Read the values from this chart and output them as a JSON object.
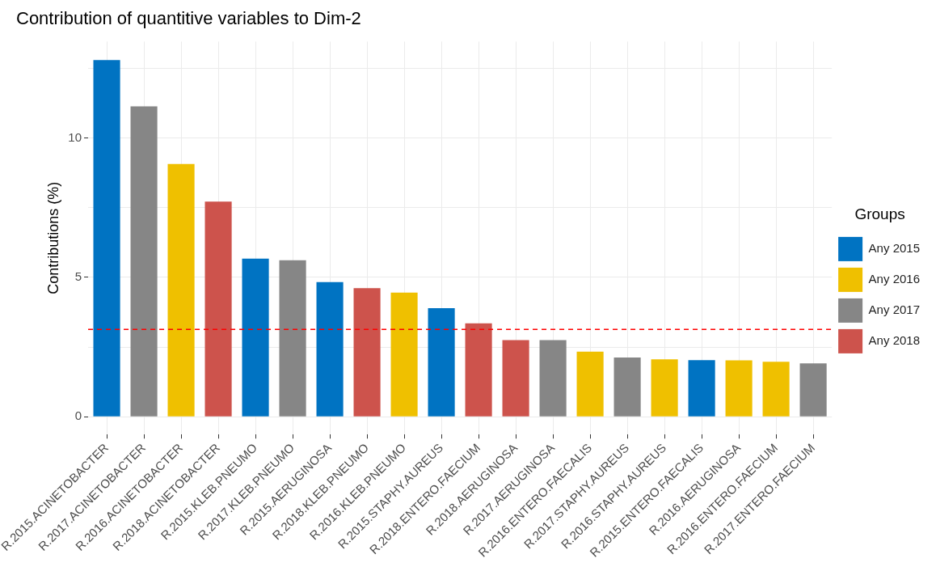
{
  "chart_data": {
    "type": "bar",
    "title": "Contribution of quantitive variables to Dim-2",
    "ylabel": "Contributions (%)",
    "legend_title": "Groups",
    "categories": [
      "R.2015.ACINETOBACTER",
      "R.2017.ACINETOBACTER",
      "R.2016.ACINETOBACTER",
      "R.2018.ACINETOBACTER",
      "R.2015.KLEB.PNEUMO",
      "R.2017.KLEB.PNEUMO",
      "R.2015.AERUGINOSA",
      "R.2018.KLEB.PNEUMO",
      "R.2016.KLEB.PNEUMO",
      "R.2015.STAPHY.AUREUS",
      "R.2018.ENTERO.FAECIUM",
      "R.2018.AERUGINOSA",
      "R.2017.AERUGINOSA",
      "R.2016.ENTERO.FAECALIS",
      "R.2017.STAPHY.AUREUS",
      "R.2016.STAPHY.AUREUS",
      "R.2015.ENTERO.FAECALIS",
      "R.2016.AERUGINOSA",
      "R.2016.ENTERO.FAECIUM",
      "R.2017.ENTERO.FAECIUM"
    ],
    "series": [
      {
        "name": "Any 2015",
        "color": "#0073c2",
        "values": [
          12.79,
          null,
          null,
          null,
          5.67,
          null,
          4.83,
          null,
          null,
          3.89,
          null,
          null,
          null,
          null,
          null,
          null,
          2.03,
          null,
          null,
          null
        ]
      },
      {
        "name": "Any 2016",
        "color": "#efc000",
        "values": [
          null,
          null,
          9.06,
          null,
          null,
          null,
          null,
          null,
          4.45,
          null,
          null,
          null,
          null,
          2.33,
          null,
          2.06,
          null,
          2.02,
          1.97,
          null
        ]
      },
      {
        "name": "Any 2017",
        "color": "#868686",
        "values": [
          null,
          11.13,
          null,
          null,
          null,
          5.61,
          null,
          null,
          null,
          null,
          null,
          null,
          2.75,
          null,
          2.12,
          null,
          null,
          null,
          null,
          1.91
        ]
      },
      {
        "name": "Any 2018",
        "color": "#cd534c",
        "values": [
          null,
          null,
          null,
          7.71,
          null,
          null,
          null,
          4.61,
          null,
          null,
          3.35,
          2.75,
          null,
          null,
          null,
          null,
          null,
          null,
          null,
          null
        ]
      }
    ],
    "ylim": [
      -0.64,
      13.45
    ],
    "yticks": [
      0,
      {
        "value": 2.5,
        "label": null
      },
      5,
      {
        "value": 7.5,
        "label": null
      },
      10,
      {
        "value": 12.5,
        "label": null
      }
    ],
    "grid": true,
    "legend": "right",
    "ref_lines": [
      {
        "axis": "y",
        "value": 3.13,
        "color": "#ff0000",
        "line_style": "dashed"
      }
    ]
  }
}
